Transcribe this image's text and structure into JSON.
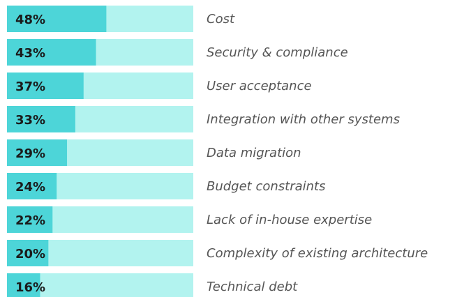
{
  "chart_data": {
    "type": "bar",
    "orientation": "horizontal",
    "categories": [
      "Cost",
      "Security & compliance",
      "User acceptance",
      "Integration with other systems",
      "Data migration",
      "Budget constraints",
      "Lack of in-house expertise",
      "Complexity of existing architecture",
      "Technical debt"
    ],
    "values": [
      48,
      43,
      37,
      33,
      29,
      24,
      22,
      20,
      16
    ],
    "value_labels": [
      "48%",
      "43%",
      "37%",
      "33%",
      "29%",
      "24%",
      "22%",
      "20%",
      "16%"
    ],
    "color": "#4dd5d8",
    "track_color": "#b2f3ef",
    "xlim": [
      0,
      90
    ]
  }
}
